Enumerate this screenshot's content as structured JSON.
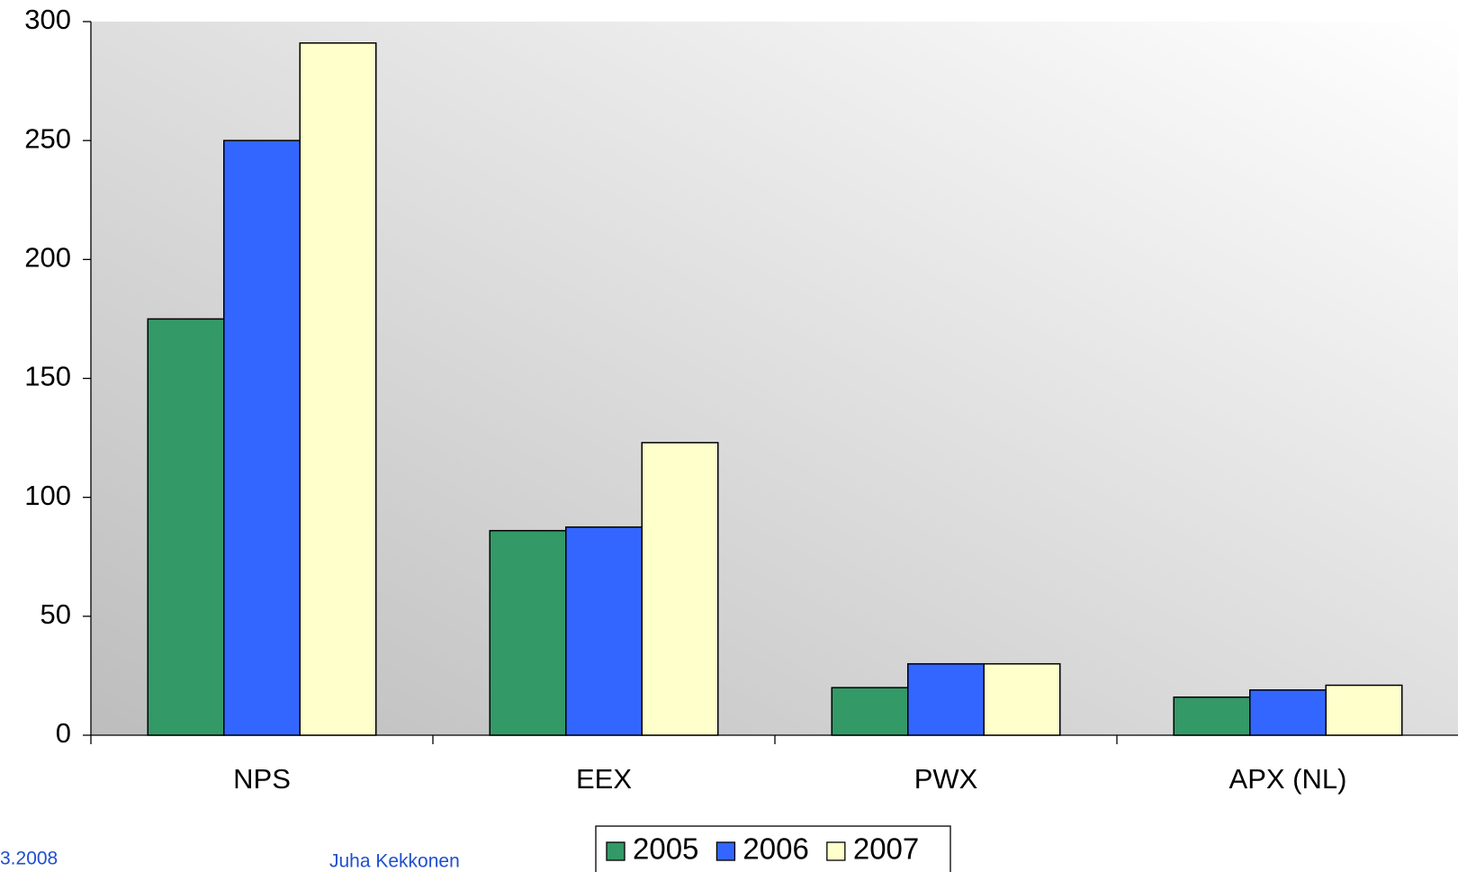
{
  "chart_data": {
    "type": "bar",
    "categories": [
      "NPS",
      "EEX",
      "PWX",
      "APX (NL)"
    ],
    "series": [
      {
        "name": "2005",
        "color": "#339966",
        "values": [
          175,
          86,
          20,
          16
        ]
      },
      {
        "name": "2006",
        "color": "#3366ff",
        "values": [
          250,
          87.5,
          30,
          19
        ]
      },
      {
        "name": "2007",
        "color": "#ffffcc",
        "values": [
          291,
          123,
          30,
          21
        ]
      }
    ],
    "ylim": [
      0,
      300
    ],
    "yticks": [
      0,
      50,
      100,
      150,
      200,
      250,
      300
    ],
    "legend": "bottom"
  },
  "footer": {
    "date": "3.2008",
    "author": "Juha Kekkonen"
  }
}
